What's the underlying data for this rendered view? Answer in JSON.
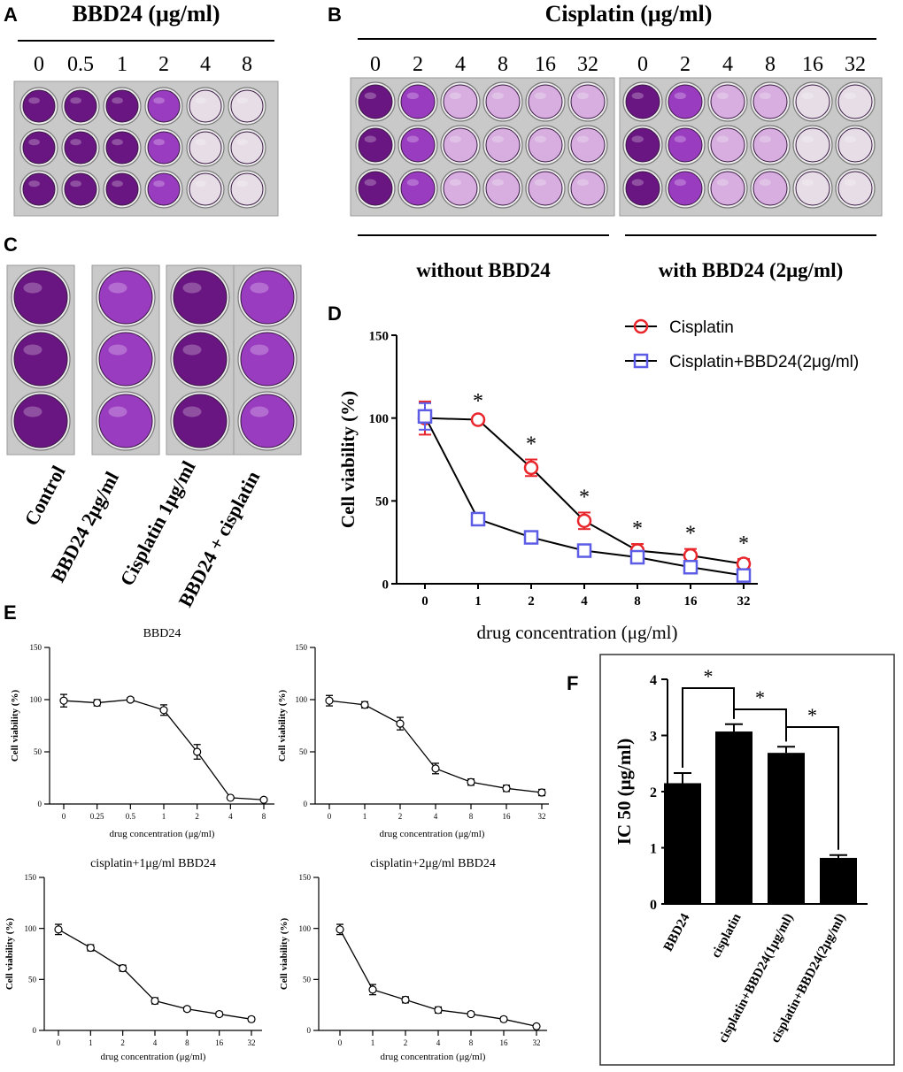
{
  "colors": {
    "cisplatin": "#e8262b",
    "combo": "#5c5ce6",
    "well_dark": "#6a1682",
    "well_mid": "#9a3cc0",
    "well_light": "#d7aedf",
    "well_clear": "#e6dde6",
    "plate": "#c9c9c9"
  },
  "panelA": {
    "letter": "A",
    "title": "BBD24 (μg/ml)",
    "doses": [
      "0",
      "0.5",
      "1",
      "2",
      "4",
      "8"
    ]
  },
  "panelB": {
    "letter": "B",
    "title": "Cisplatin (μg/ml)",
    "doses": [
      "0",
      "2",
      "4",
      "8",
      "16",
      "32"
    ],
    "label_without": "without BBD24",
    "label_with": "with BBD24 (2μg/ml)"
  },
  "panelC": {
    "letter": "C",
    "labels": [
      "Control",
      "BBD24 2μg/ml",
      "Cisplatin 1μg/ml",
      "BBD24 + cisplatin"
    ]
  },
  "panelD": {
    "letter": "D"
  },
  "panelE": {
    "letter": "E"
  },
  "panelF": {
    "letter": "F"
  },
  "chart_data": [
    {
      "id": "D",
      "type": "line",
      "title": "",
      "xlabel": "drug concentration (μg/ml)",
      "ylabel": "Cell viability (%)",
      "categories": [
        "0",
        "1",
        "2",
        "4",
        "8",
        "16",
        "32"
      ],
      "ylim": [
        0,
        150
      ],
      "yticks": [
        0,
        50,
        100,
        150
      ],
      "series": [
        {
          "name": "Cisplatin",
          "values": [
            100,
            99,
            70,
            38,
            20,
            17,
            12
          ],
          "errors": [
            10,
            2,
            5,
            5,
            4,
            4,
            3
          ]
        },
        {
          "name": "Cisplatin+BBD24(2μg/ml)",
          "values": [
            101,
            39,
            28,
            20,
            16,
            10,
            5
          ],
          "errors": [
            8,
            3,
            2,
            2,
            2,
            2,
            2
          ]
        }
      ],
      "annotations": [
        "*",
        "*",
        "*",
        "*",
        "*",
        "*"
      ]
    },
    {
      "id": "E1",
      "type": "line",
      "title": "BBD24",
      "xlabel": "drug concentration (μg/ml)",
      "ylabel": "Cell viability (%)",
      "categories": [
        "0",
        "0.25",
        "0.5",
        "1",
        "2",
        "4",
        "8"
      ],
      "ylim": [
        0,
        150
      ],
      "yticks": [
        0,
        50,
        100,
        150
      ],
      "values": [
        99,
        97,
        100,
        90,
        50,
        6,
        4
      ],
      "errors": [
        6,
        3,
        2,
        5,
        7,
        1,
        1
      ]
    },
    {
      "id": "E2",
      "type": "line",
      "title": "",
      "xlabel": "drug concentration (μg/ml)",
      "ylabel": "Cell viability (%)",
      "categories": [
        "0",
        "1",
        "2",
        "4",
        "8",
        "16",
        "32"
      ],
      "ylim": [
        0,
        150
      ],
      "yticks": [
        0,
        50,
        100,
        150
      ],
      "values": [
        99,
        95,
        77,
        34,
        21,
        15,
        11
      ],
      "errors": [
        5,
        3,
        6,
        5,
        3,
        3,
        3
      ]
    },
    {
      "id": "E3",
      "type": "line",
      "title": "cisplatin+1μg/ml BBD24",
      "xlabel": "drug concentration (μg/ml)",
      "ylabel": "Cell viability (%)",
      "categories": [
        "0",
        "1",
        "2",
        "4",
        "8",
        "16",
        "32"
      ],
      "ylim": [
        0,
        150
      ],
      "yticks": [
        0,
        50,
        100,
        150
      ],
      "values": [
        99,
        81,
        61,
        29,
        21,
        16,
        11
      ],
      "errors": [
        5,
        3,
        3,
        3,
        2,
        2,
        2
      ]
    },
    {
      "id": "E4",
      "type": "line",
      "title": "cisplatin+2μg/ml BBD24",
      "xlabel": "drug concentration (μg/ml)",
      "ylabel": "Cell viability (%)",
      "categories": [
        "0",
        "1",
        "2",
        "4",
        "8",
        "16",
        "32"
      ],
      "ylim": [
        0,
        150
      ],
      "yticks": [
        0,
        50,
        100,
        150
      ],
      "values": [
        99,
        40,
        30,
        20,
        16,
        11,
        4
      ],
      "errors": [
        5,
        5,
        3,
        3,
        2,
        2,
        1
      ]
    },
    {
      "id": "F",
      "type": "bar",
      "title": "",
      "xlabel": "",
      "ylabel": "IC 50 (μg/ml)",
      "categories": [
        "BBD24",
        "cisplatin",
        "cisplatin+BBD24(1μg/ml)",
        "cisplatin+BBD24(2μg/ml)"
      ],
      "values": [
        2.15,
        3.07,
        2.69,
        0.82
      ],
      "errors": [
        0.18,
        0.13,
        0.11,
        0.05
      ],
      "ylim": [
        0,
        4
      ],
      "yticks": [
        0,
        1,
        2,
        3,
        4
      ],
      "annotations": [
        "*",
        "*",
        "*"
      ]
    }
  ]
}
